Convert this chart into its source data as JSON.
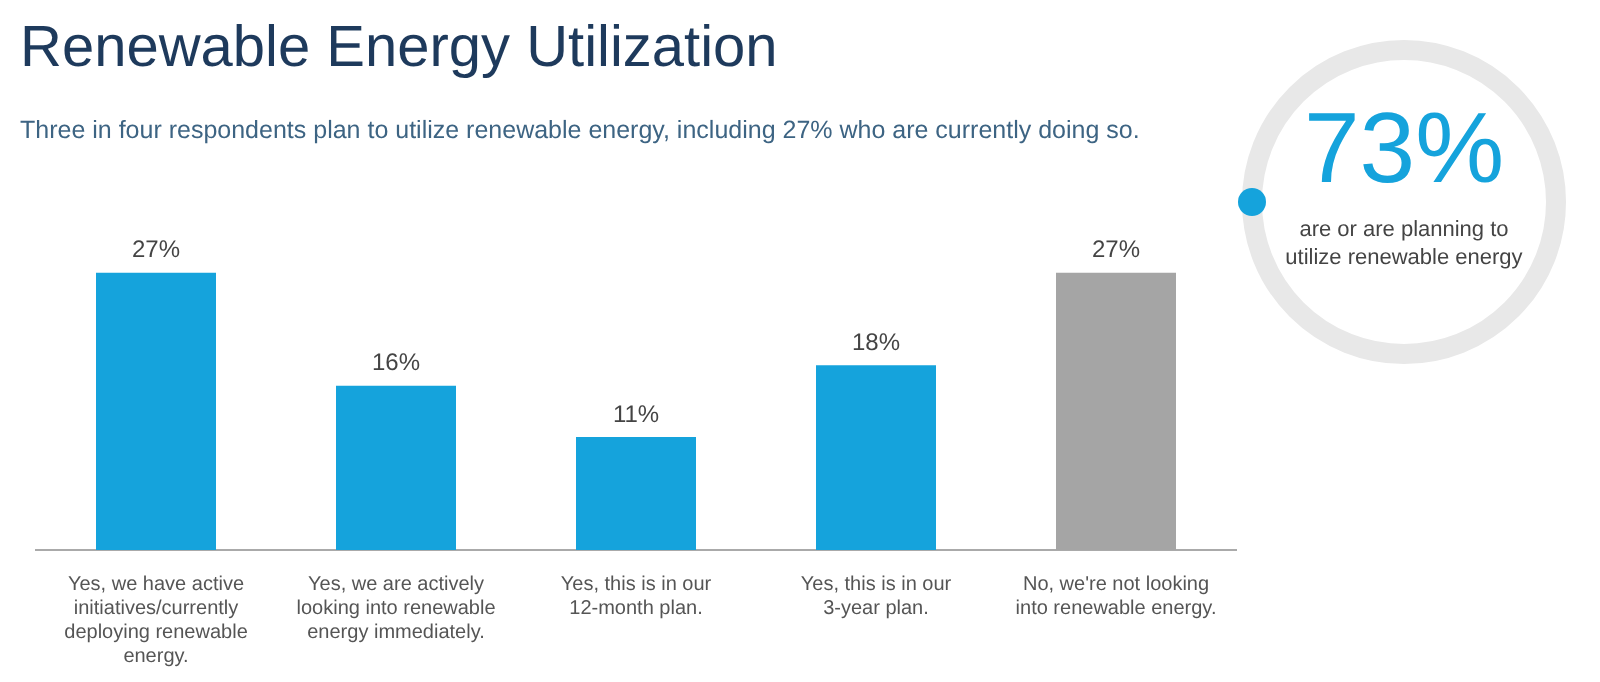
{
  "chart_data": [
    {
      "type": "bar",
      "title": "Renewable Energy Utilization",
      "subtitle": "Three in four respondents plan to utilize renewable energy, including 27% who are currently doing so.",
      "categories": [
        "Yes, we have active initiatives/currently deploying renewable energy.",
        "Yes, we are actively looking into renewable energy immediately.",
        "Yes, this is in our 12-month plan.",
        "Yes, this is in our 3-year plan.",
        "No, we're not looking into renewable energy."
      ],
      "values": [
        27,
        16,
        11,
        18,
        27
      ],
      "colors": [
        "#15a3dc",
        "#15a3dc",
        "#15a3dc",
        "#15a3dc",
        "#a5a5a5"
      ],
      "value_labels": [
        "27%",
        "16%",
        "11%",
        "18%",
        "27%"
      ]
    },
    {
      "type": "other",
      "title": "73%",
      "annotations": [
        "are or are planning to utilize renewable energy"
      ]
    }
  ]
}
